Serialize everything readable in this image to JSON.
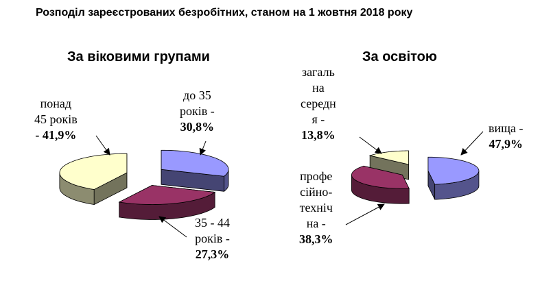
{
  "title": "Розподіл зареєстрованих безробітних, станом на 1  жовтня 2018 року",
  "colors": {
    "lavender": "#9999FF",
    "plum": "#993366",
    "cream": "#FFFFCC",
    "outline": "#000000"
  },
  "chart_data": [
    {
      "type": "pie",
      "title": "За віковими групами",
      "categories": [
        "до 35 років",
        "35 - 44 років",
        "понад 45 років"
      ],
      "values": [
        30.8,
        27.3,
        41.9
      ],
      "unit": "%",
      "colors": [
        "#9999FF",
        "#993366",
        "#FFFFCC"
      ],
      "exploded": true,
      "labels": [
        {
          "lines": [
            "до 35",
            "років -"
          ],
          "value": "30,8%"
        },
        {
          "lines": [
            "35 - 44",
            "років -"
          ],
          "value": "27,3%"
        },
        {
          "lines": [
            "понад",
            "45 років"
          ],
          "value": "- 41,9%"
        }
      ]
    },
    {
      "type": "pie",
      "title": "За освітою",
      "categories": [
        "вища",
        "професійно-технічна",
        "загальна середня"
      ],
      "values": [
        47.9,
        38.3,
        13.8
      ],
      "unit": "%",
      "colors": [
        "#9999FF",
        "#993366",
        "#FFFFCC"
      ],
      "exploded": true,
      "labels": [
        {
          "lines": [
            "вища -"
          ],
          "value": "47,9%"
        },
        {
          "lines": [
            "профе",
            "сійно-",
            "техніч",
            "на -"
          ],
          "value": "38,3%"
        },
        {
          "lines": [
            "загаль",
            "на",
            "середн",
            "я -"
          ],
          "value": "13,8%"
        }
      ]
    }
  ]
}
